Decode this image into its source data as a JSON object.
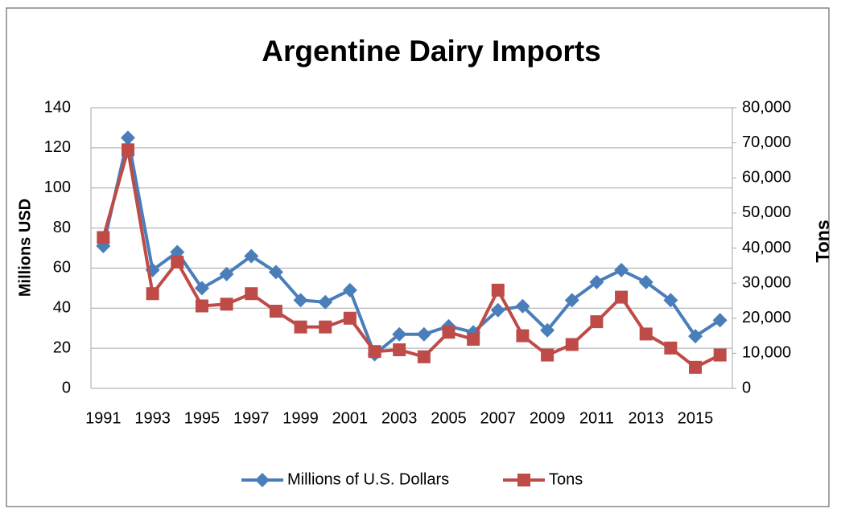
{
  "chart_data": {
    "type": "line",
    "title": "Argentine Dairy Imports",
    "ylabel": "Millions  USD",
    "y2label": "Tons",
    "categories": [
      "1991",
      null,
      "1993",
      null,
      "1995",
      null,
      "1997",
      null,
      "1999",
      null,
      "2001",
      null,
      "2003",
      null,
      "2005",
      null,
      "2007",
      null,
      "2009",
      null,
      "2011",
      null,
      "2013",
      null,
      "2015",
      null
    ],
    "series": [
      {
        "name": "Millions of U.S. Dollars",
        "color": "#4a7ebb",
        "marker": "diamond",
        "values": [
          71,
          125,
          59,
          68,
          50,
          57,
          66,
          58,
          44,
          43,
          49,
          17,
          27,
          27,
          31,
          28,
          39,
          41,
          29,
          44,
          53,
          59,
          53,
          44,
          26,
          34
        ]
      },
      {
        "name": "Tons",
        "color": "#be4b48",
        "marker": "square",
        "axis": "y2",
        "values": [
          43000,
          68000,
          27000,
          36000,
          23500,
          24000,
          27000,
          22000,
          17500,
          17500,
          20000,
          10500,
          11000,
          9000,
          16000,
          14000,
          28000,
          15000,
          9500,
          12500,
          19000,
          26000,
          15500,
          11500,
          6000,
          9500
        ]
      }
    ],
    "ylim": [
      0,
      140
    ],
    "yticks": [
      0,
      20,
      40,
      60,
      80,
      100,
      120,
      140
    ],
    "y2lim": [
      0,
      80000
    ],
    "y2ticks": [
      0,
      {
        "value": 10000,
        "label": "10,000"
      },
      {
        "value": 20000,
        "label": "20,000"
      },
      {
        "value": 30000,
        "label": "30,000"
      },
      {
        "value": 40000,
        "label": "40,000"
      },
      {
        "value": 50000,
        "label": "50,000"
      },
      {
        "value": 60000,
        "label": "60,000"
      },
      {
        "value": 70000,
        "label": "70,000"
      },
      {
        "value": 80000,
        "label": "80,000"
      }
    ],
    "grid": true,
    "legend": "bottom"
  }
}
